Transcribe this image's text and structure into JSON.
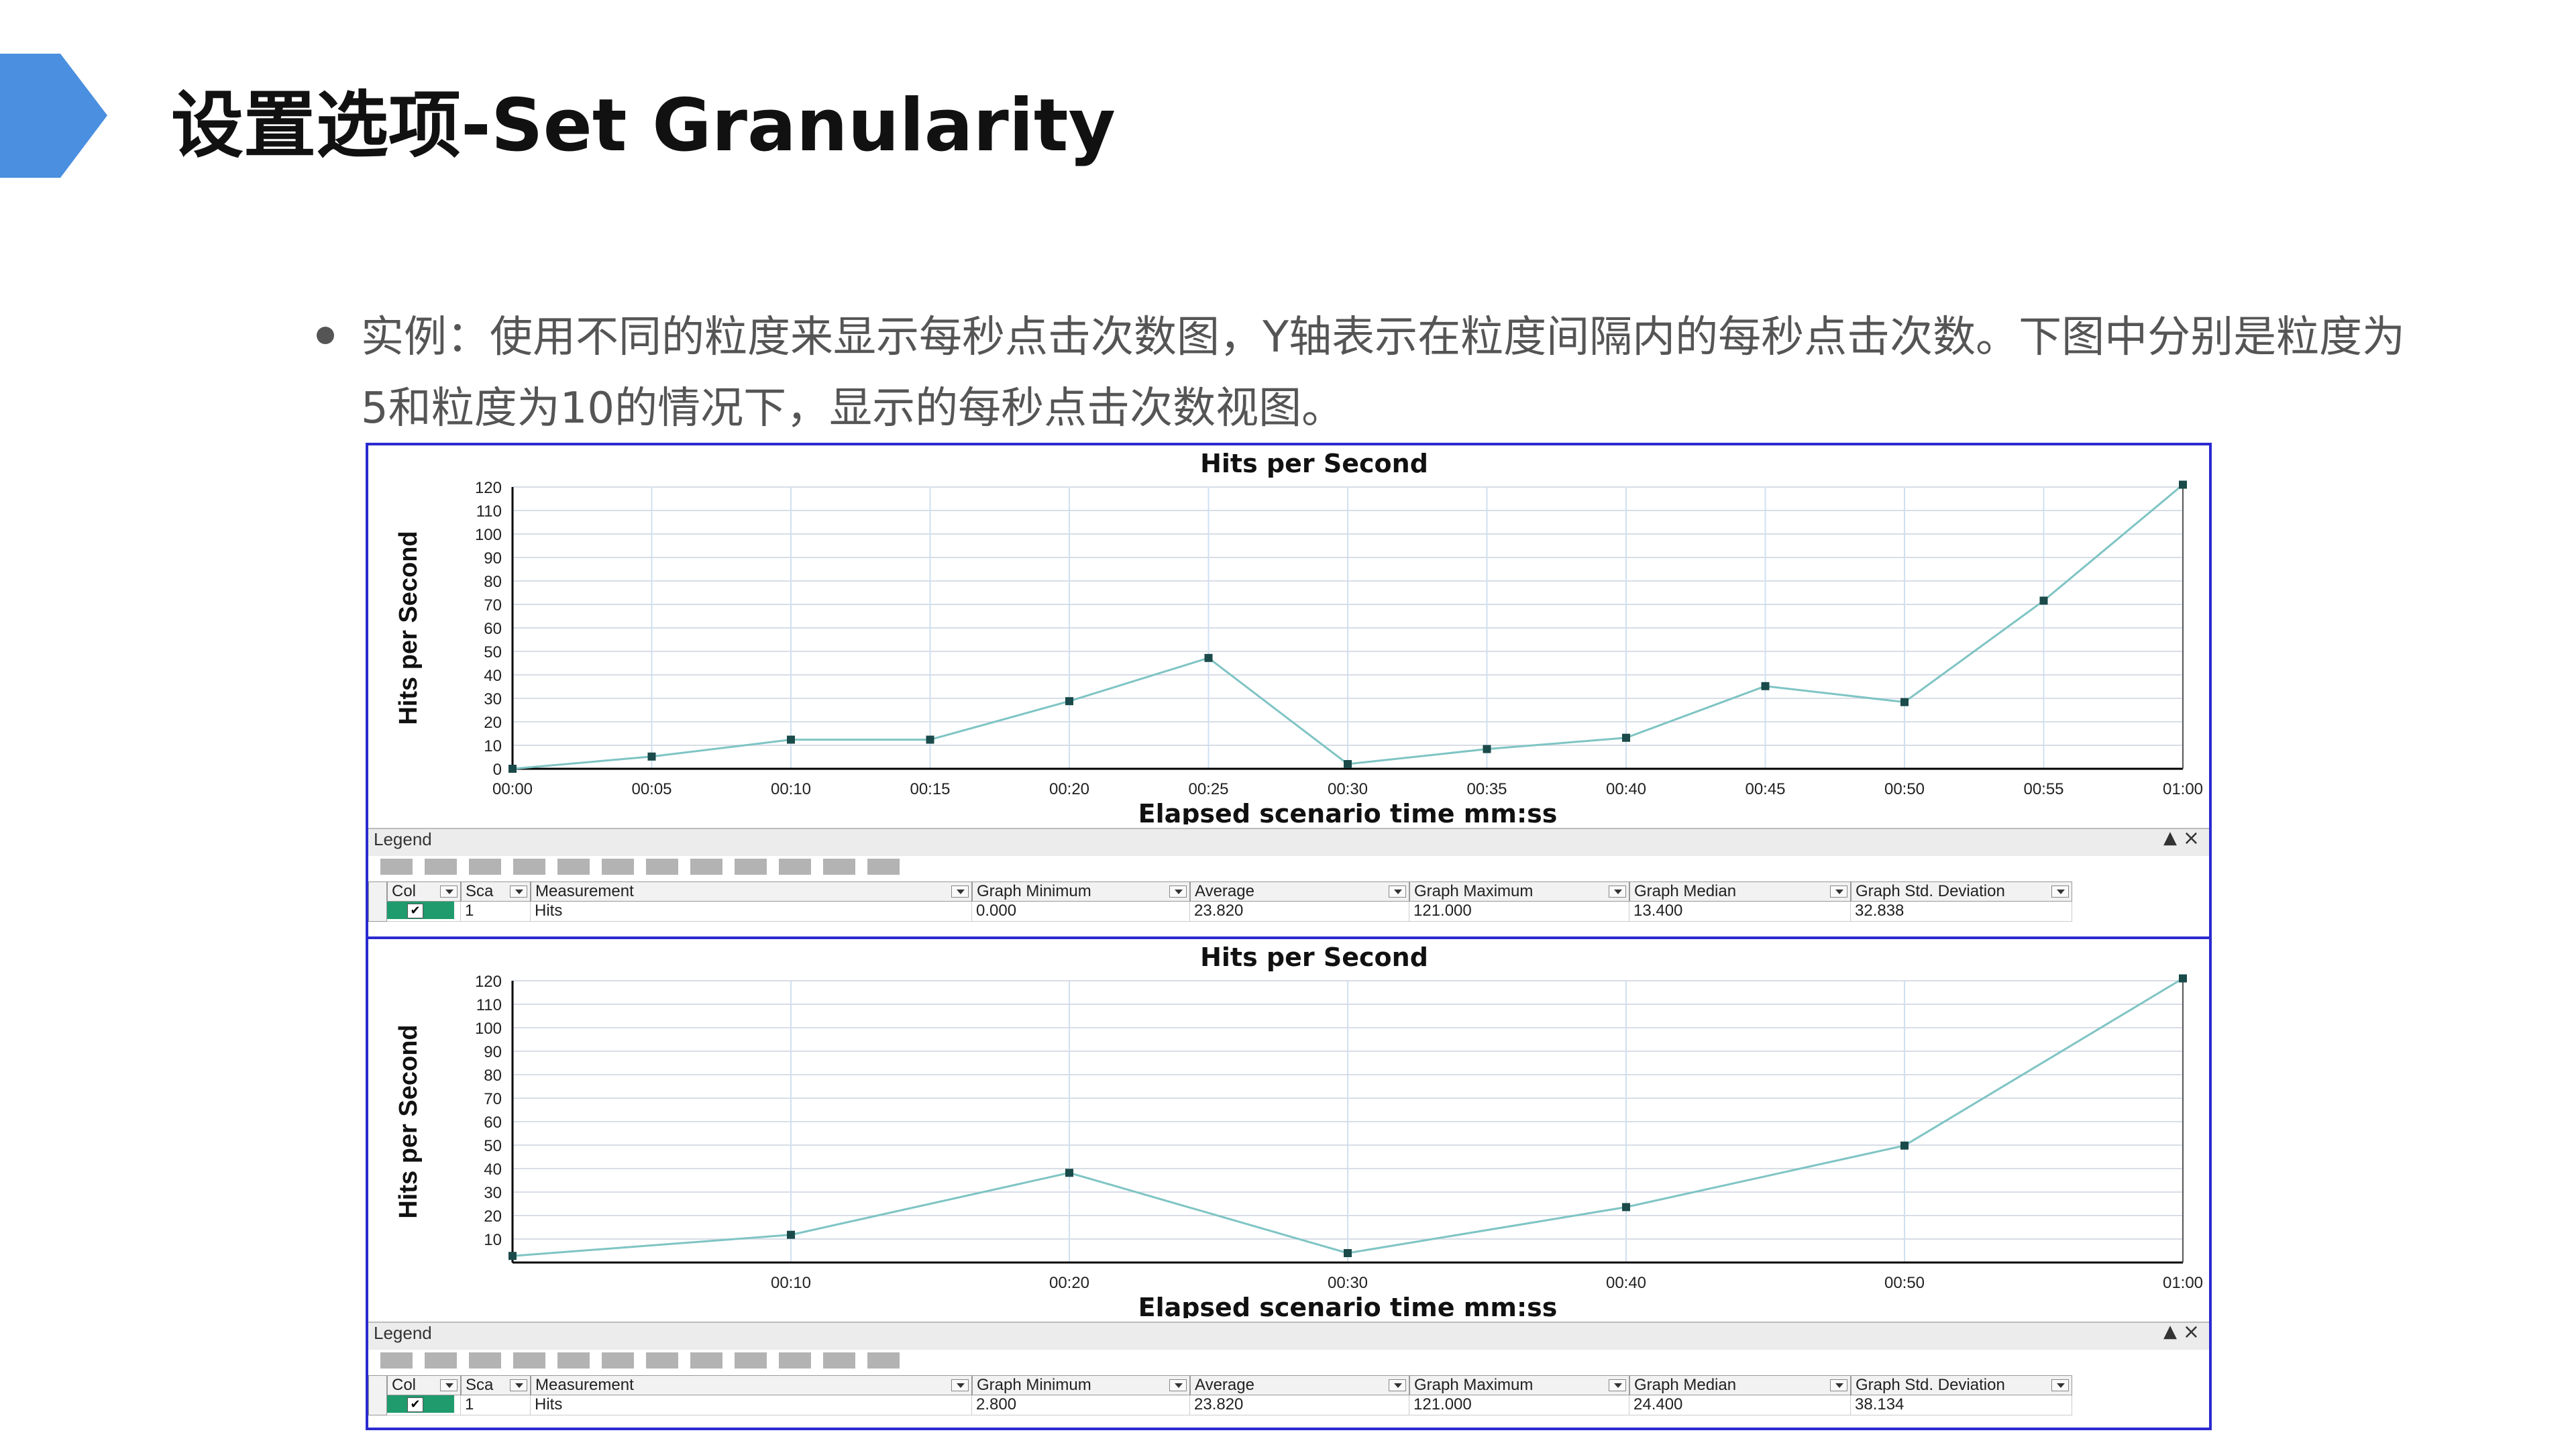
{
  "page": {
    "title": "设置选项-Set Granularity",
    "bullet": "实例：使用不同的粒度来显示每秒点击次数图，Y轴表示在粒度间隔内的每秒点击次数。下图中分别是粒度为5和粒度为10的情况下，显示的每秒点击次数视图。"
  },
  "colors": {
    "accent_arrow": "#4a8fe0",
    "panel_border": "#2a2ad0",
    "line": "#7fc4c4",
    "marker": "#1a4a4a",
    "checkbox_bg": "#1f9b6e"
  },
  "legend_common": {
    "title": "Legend",
    "columns": [
      "Col",
      "Sca",
      "Measurement",
      "Graph Minimum",
      "Average",
      "Graph Maximum",
      "Graph Median",
      "Graph Std. Deviation"
    ]
  },
  "chart_data": [
    {
      "type": "line",
      "title": "Hits per Second",
      "xlabel": "Elapsed scenario time mm:ss",
      "ylabel": "Hits per Second",
      "x_ticks": [
        "00:00",
        "00:05",
        "00:10",
        "00:15",
        "00:20",
        "00:25",
        "00:30",
        "00:35",
        "00:40",
        "00:45",
        "00:50",
        "00:55",
        "01:00"
      ],
      "y_ticks": [
        "0",
        "10",
        "20",
        "30",
        "40",
        "50",
        "60",
        "70",
        "80",
        "90",
        "100",
        "110",
        "120"
      ],
      "ylim": [
        0,
        120
      ],
      "grid": true,
      "series": [
        {
          "name": "Hits",
          "x": [
            "00:00",
            "00:05",
            "00:10",
            "00:15",
            "00:20",
            "00:25",
            "00:30",
            "00:35",
            "00:40",
            "00:45",
            "00:50",
            "00:55",
            "01:00"
          ],
          "values": [
            0,
            5.2,
            12.4,
            12.4,
            28.8,
            47.2,
            2,
            8.4,
            13.2,
            35.2,
            28.4,
            71.6,
            121
          ]
        }
      ],
      "legend": {
        "col": "",
        "scale": "1",
        "measurement": "Hits",
        "min": "0.000",
        "avg": "23.820",
        "max": "121.000",
        "median": "13.400",
        "std": "32.838"
      }
    },
    {
      "type": "line",
      "title": "Hits per Second",
      "xlabel": "Elapsed scenario time mm:ss",
      "ylabel": "Hits per Second",
      "x_ticks": [
        "00:10",
        "00:20",
        "00:30",
        "00:40",
        "00:50",
        "01:00"
      ],
      "y_ticks": [
        "10",
        "20",
        "30",
        "40",
        "50",
        "60",
        "70",
        "80",
        "90",
        "100",
        "110",
        "120"
      ],
      "ylim": [
        0,
        120
      ],
      "grid": true,
      "series": [
        {
          "name": "Hits",
          "x": [
            "00:00",
            "00:10",
            "00:20",
            "00:30",
            "00:40",
            "00:50",
            "01:00"
          ],
          "values": [
            2.8,
            11.8,
            38.2,
            4,
            23.6,
            49.8,
            121
          ]
        }
      ],
      "legend": {
        "col": "",
        "scale": "1",
        "measurement": "Hits",
        "min": "2.800",
        "avg": "23.820",
        "max": "121.000",
        "median": "24.400",
        "std": "38.134"
      }
    }
  ]
}
